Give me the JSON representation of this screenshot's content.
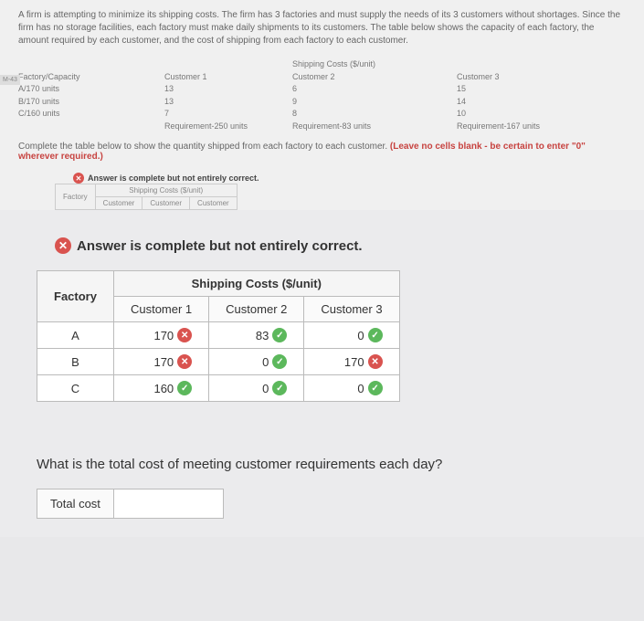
{
  "problem": {
    "text": "A firm is attempting to minimize its shipping costs. The firm has 3 factories and must supply the needs of its 3 customers without shortages. Since the firm has no storage facilities, each factory must make daily shipments to its customers. The table below shows the capacity of each factory, the amount required by each customer, and the cost of shipping from each factory to each customer."
  },
  "sidetab": "M-43",
  "cost_table": {
    "header_main": "Shipping Costs ($/unit)",
    "col_factory": "Factory/Capacity",
    "col_c1": "Customer 1",
    "col_c2": "Customer 2",
    "col_c3": "Customer 3",
    "rows": [
      {
        "f": "A/170 units",
        "c1": "13",
        "c2": "6",
        "c3": "15"
      },
      {
        "f": "B/170 units",
        "c1": "13",
        "c2": "9",
        "c3": "14"
      },
      {
        "f": "C/160 units",
        "c1": "7",
        "c2": "8",
        "c3": "10"
      }
    ],
    "req_label": "Requirement-250 units",
    "req_c2": "Requirement-83 units",
    "req_c3": "Requirement-167 units"
  },
  "instruction": {
    "pre": "Complete the table below to show the quantity shipped from each factory to each customer. ",
    "bold": "(Leave no cells blank - be certain to enter \"0\" wherever required.)"
  },
  "feedback_small": "Answer is complete but not entirely correct.",
  "mini": {
    "title": "Shipping Costs ($/unit)",
    "factory": "Factory",
    "c": "Customer"
  },
  "feedback_main": "Answer is complete but not entirely correct.",
  "answer": {
    "ship_header": "Shipping Costs ($/unit)",
    "factory_label": "Factory",
    "c1": "Customer 1",
    "c2": "Customer 2",
    "c3": "Customer 3",
    "rows": [
      {
        "f": "A",
        "v1": "170",
        "m1": "wrong",
        "v2": "83",
        "m2": "right",
        "v3": "0",
        "m3": "right"
      },
      {
        "f": "B",
        "v1": "170",
        "m1": "wrong",
        "v2": "0",
        "m2": "right",
        "v3": "170",
        "m3": "wrong"
      },
      {
        "f": "C",
        "v1": "160",
        "m1": "right",
        "v2": "0",
        "m2": "right",
        "v3": "0",
        "m3": "right"
      }
    ]
  },
  "question": "What is the total cost of meeting customer requirements each day?",
  "total_label": "Total cost"
}
